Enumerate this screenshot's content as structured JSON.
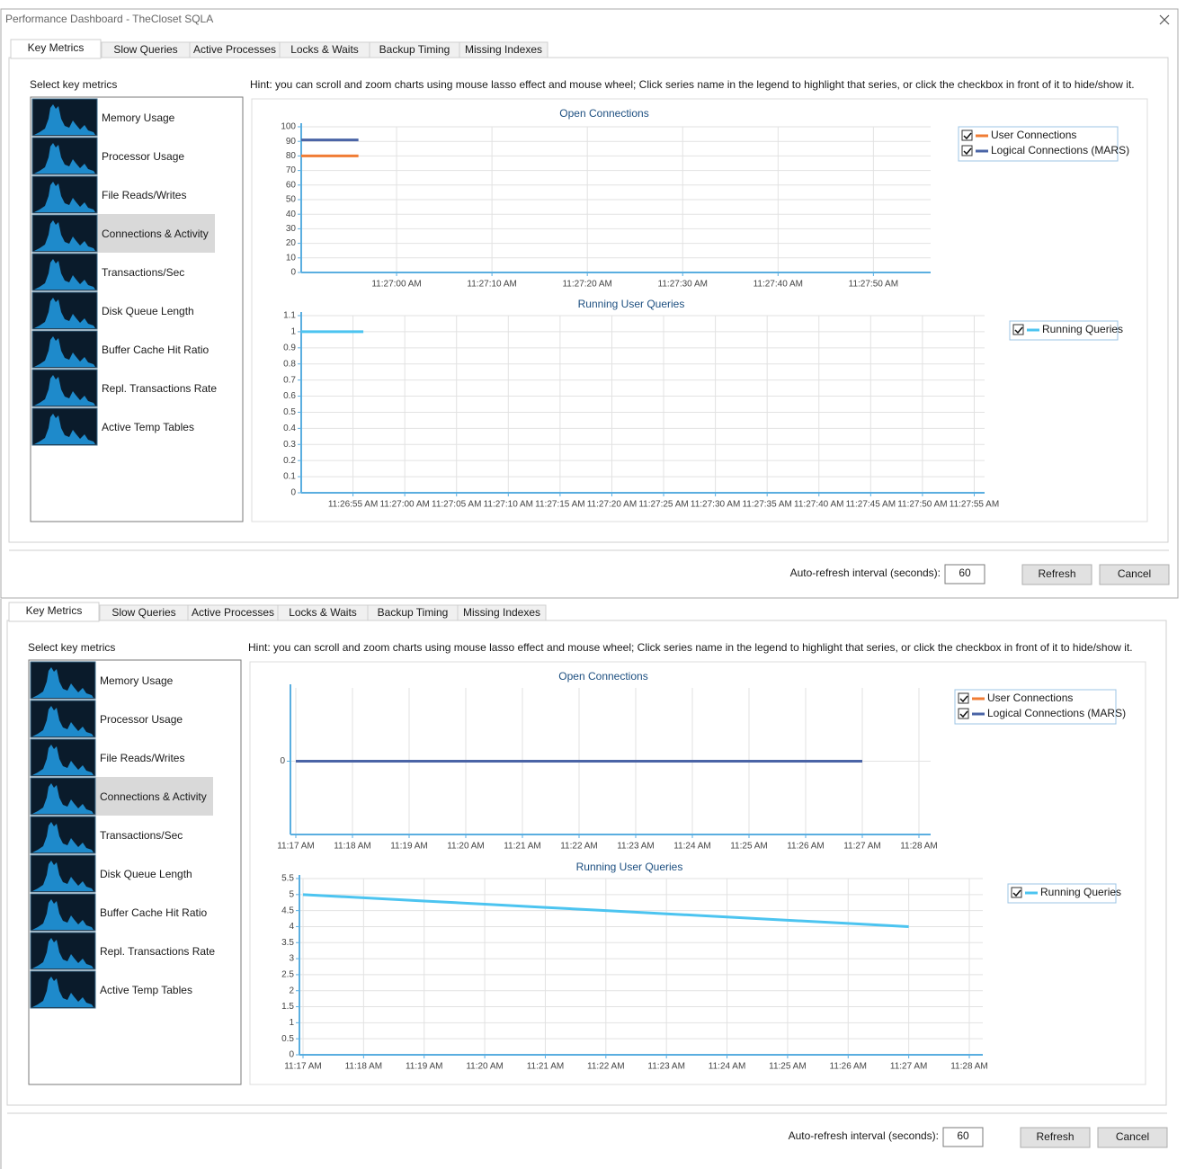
{
  "window_title": "Performance Dashboard - TheCloset SQLA",
  "tabs": [
    "Key Metrics",
    "Slow Queries",
    "Active Processes",
    "Locks & Waits",
    "Backup Timing",
    "Missing Indexes"
  ],
  "active_tab": 0,
  "select_label": "Select  key metrics",
  "metrics": [
    "Memory Usage",
    "Processor Usage",
    "File Reads/Writes",
    "Connections & Activity",
    "Transactions/Sec",
    "Disk Queue Length",
    "Buffer Cache Hit Ratio",
    "Repl. Transactions Rate",
    "Active Temp Tables"
  ],
  "selected_metric": 3,
  "hint": "Hint: you can scroll and zoom charts using mouse lasso effect and mouse wheel; Click series name in the legend to highlight that series, or click the checkbox in front of it to hide/show it.",
  "refresh_label": "Auto-refresh interval (seconds):",
  "refresh_interval": 60,
  "buttons": [
    "Refresh",
    "Cancel"
  ],
  "panels": [
    {
      "charts": [
        {
          "type": "line",
          "title": "Open Connections",
          "legend": "top-right",
          "grid": true,
          "x": [
            "11:26:50 AM",
            "11:26:56 AM"
          ],
          "series": [
            {
              "name": "User Connections",
              "color": "#f07c34",
              "values": [
                80,
                80
              ]
            },
            {
              "name": "Logical Connections (MARS)",
              "color": "#4a64a6",
              "values": [
                91,
                91
              ]
            }
          ],
          "xlim": [
            "11:26:50 AM",
            "11:27:56 AM"
          ],
          "xticks": [
            "11:27:00 AM",
            "11:27:10 AM",
            "11:27:20 AM",
            "11:27:30 AM",
            "11:27:40 AM",
            "11:27:50 AM"
          ],
          "ylim": [
            0,
            100
          ],
          "yticks": [
            0,
            10,
            20,
            30,
            40,
            50,
            60,
            70,
            80,
            90,
            100
          ]
        },
        {
          "type": "line",
          "title": "Running User Queries",
          "legend": "top-right",
          "grid": true,
          "x": [
            "11:26:50 AM",
            "11:26:56 AM"
          ],
          "series": [
            {
              "name": "Running Queries",
              "color": "#4cc4f0",
              "values": [
                1,
                1
              ]
            }
          ],
          "xlim": [
            "11:26:50 AM",
            "11:27:56 AM"
          ],
          "xticks": [
            "11:26:55 AM",
            "11:27:00 AM",
            "11:27:05 AM",
            "11:27:10 AM",
            "11:27:15 AM",
            "11:27:20 AM",
            "11:27:25 AM",
            "11:27:30 AM",
            "11:27:35 AM",
            "11:27:40 AM",
            "11:27:45 AM",
            "11:27:50 AM",
            "11:27:55 AM"
          ],
          "ylim": [
            0,
            1.1
          ],
          "yticks": [
            0,
            0.1,
            0.2,
            0.3,
            0.4,
            0.5,
            0.6,
            0.7,
            0.8,
            0.9,
            1,
            1.1
          ]
        }
      ]
    },
    {
      "charts": [
        {
          "type": "line",
          "title": "Open Connections",
          "legend": "top-right",
          "grid": true,
          "x": [
            "11:17 AM",
            "11:27 AM"
          ],
          "series": [
            {
              "name": "User Connections",
              "color": "#f07c34",
              "values": [
                0,
                0
              ]
            },
            {
              "name": "Logical Connections (MARS)",
              "color": "#4a64a6",
              "values": [
                0,
                0
              ]
            }
          ],
          "xlim": [
            "11:17 AM",
            "11:28 AM"
          ],
          "xticks": [
            "11:17 AM",
            "11:18 AM",
            "11:19 AM",
            "11:20 AM",
            "11:21 AM",
            "11:22 AM",
            "11:23 AM",
            "11:24 AM",
            "11:25 AM",
            "11:26 AM",
            "11:27 AM",
            "11:28 AM"
          ],
          "ylim": [
            -1,
            1
          ],
          "yticks": [
            0
          ]
        },
        {
          "type": "line",
          "title": "Running User Queries",
          "legend": "top-right",
          "grid": true,
          "x": [
            "11:17 AM",
            "11:18 AM",
            "11:19 AM",
            "11:20 AM",
            "11:21 AM",
            "11:22 AM",
            "11:23 AM",
            "11:24 AM",
            "11:25 AM",
            "11:26 AM",
            "11:27 AM"
          ],
          "series": [
            {
              "name": "Running Queries",
              "color": "#4cc4f0",
              "values": [
                5,
                4.9,
                4.8,
                4.7,
                4.6,
                4.5,
                4.4,
                4.3,
                4.2,
                4.1,
                4
              ]
            }
          ],
          "xlim": [
            "11:17 AM",
            "11:28 AM"
          ],
          "xticks": [
            "11:17 AM",
            "11:18 AM",
            "11:19 AM",
            "11:20 AM",
            "11:21 AM",
            "11:22 AM",
            "11:23 AM",
            "11:24 AM",
            "11:25 AM",
            "11:26 AM",
            "11:27 AM",
            "11:28 AM"
          ],
          "ylim": [
            0,
            5.5
          ],
          "yticks": [
            0,
            0.5,
            1,
            1.5,
            2,
            2.5,
            3,
            3.5,
            4,
            4.5,
            5,
            5.5
          ]
        }
      ]
    }
  ]
}
